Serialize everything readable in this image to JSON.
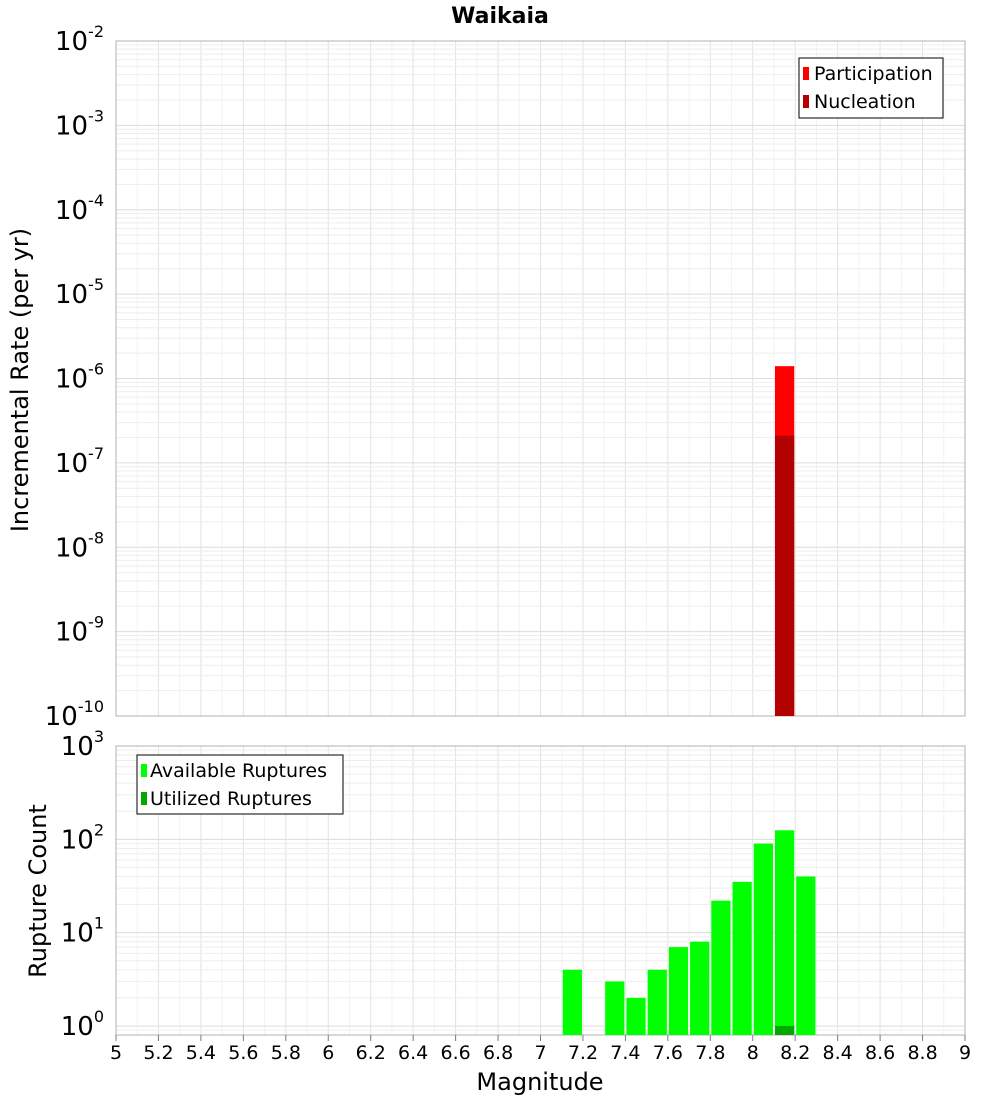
{
  "chart_data": [
    {
      "type": "bar",
      "title": "Waikaia",
      "xlabel": "",
      "ylabel": "Incremental Rate (per yr)",
      "y_scale": "log",
      "xlim": [
        5,
        9
      ],
      "ylim": [
        1e-10,
        0.01
      ],
      "y_tick_bases": [
        "10",
        "10",
        "10",
        "10",
        "10",
        "10",
        "10",
        "10",
        "10"
      ],
      "y_tick_exps": [
        "-10",
        "-9",
        "-8",
        "-7",
        "-6",
        "-5",
        "-4",
        "-3",
        "-2"
      ],
      "bar_width": 0.1,
      "grid": true,
      "legend_position": "top-right",
      "legend": [
        {
          "label": "Participation",
          "color": "#ff0000"
        },
        {
          "label": "Nucleation",
          "color": "#b30000"
        }
      ],
      "series": [
        {
          "name": "Participation",
          "color": "#ff0000",
          "x": [
            8.15
          ],
          "values": [
            1.4e-06
          ]
        },
        {
          "name": "Nucleation",
          "color": "#b30000",
          "x": [
            8.15
          ],
          "values": [
            2.1e-07
          ]
        }
      ]
    },
    {
      "type": "bar",
      "title": "",
      "xlabel": "Magnitude",
      "ylabel": "Rupture Count",
      "y_scale": "log",
      "xlim": [
        5,
        9
      ],
      "ylim": [
        0.8,
        1000
      ],
      "x_ticks": [
        "5",
        "5.2",
        "5.4",
        "5.6",
        "5.8",
        "6",
        "6.2",
        "6.4",
        "6.6",
        "6.8",
        "7",
        "7.2",
        "7.4",
        "7.6",
        "7.8",
        "8",
        "8.2",
        "8.4",
        "8.6",
        "8.8",
        "9"
      ],
      "y_tick_bases": [
        "10",
        "10",
        "10",
        "10"
      ],
      "y_tick_exps": [
        "0",
        "1",
        "2",
        "3"
      ],
      "bar_width": 0.1,
      "grid": true,
      "legend_position": "top-left",
      "legend": [
        {
          "label": "Available Ruptures",
          "color": "#00ff00"
        },
        {
          "label": "Utilized Ruptures",
          "color": "#00a800"
        }
      ],
      "series": [
        {
          "name": "Available Ruptures",
          "color": "#00ff00",
          "x": [
            7.15,
            7.35,
            7.45,
            7.55,
            7.65,
            7.75,
            7.85,
            7.95,
            8.05,
            8.15,
            8.25
          ],
          "values": [
            4,
            3,
            2,
            4,
            7,
            8,
            22,
            35,
            90,
            125,
            40
          ]
        },
        {
          "name": "Utilized Ruptures",
          "color": "#00a800",
          "x": [
            8.15
          ],
          "values": [
            1
          ]
        }
      ]
    }
  ]
}
